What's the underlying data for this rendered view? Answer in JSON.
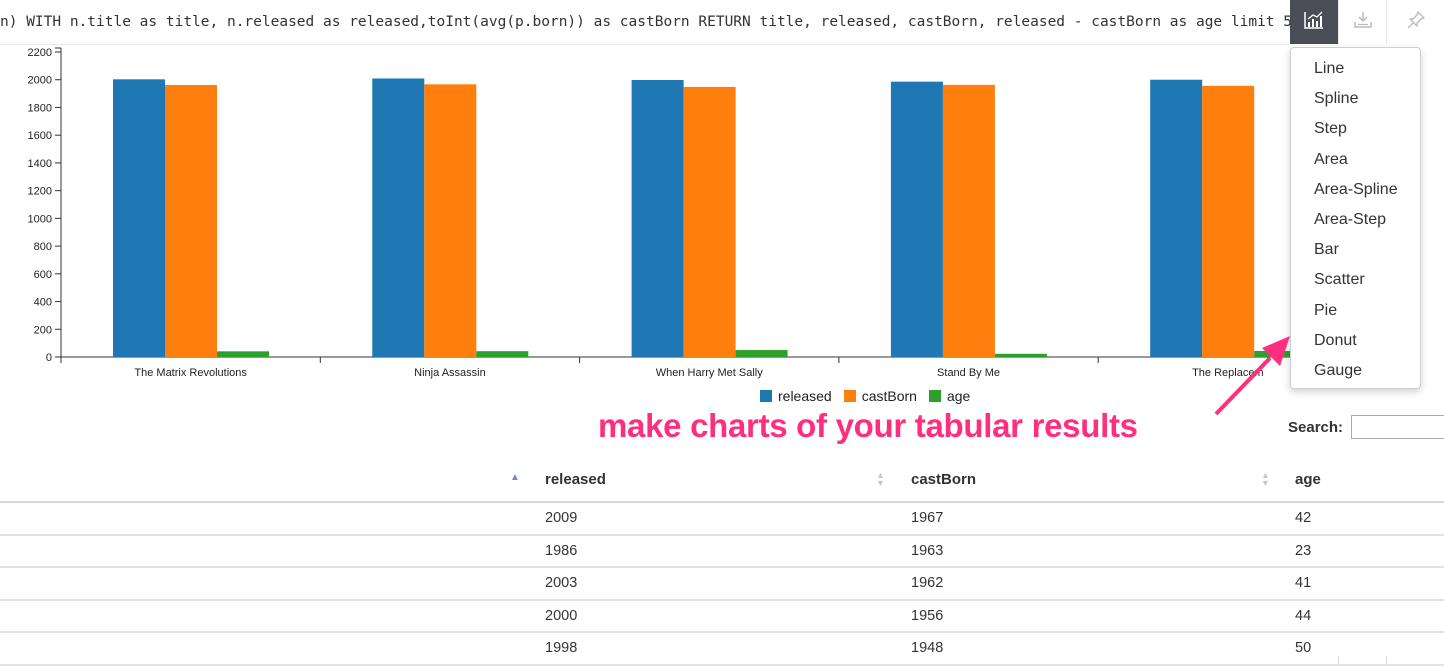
{
  "query": {
    "text": "n) WITH n.title as title, n.released as released,toInt(avg(p.born)) as castBorn RETURN title, released, castBorn, released - castBorn as age limit 5"
  },
  "toolbar": {
    "chart_icon": "chart-icon",
    "download_icon": "download-icon",
    "pin_icon": "pin-icon",
    "active_color": "#4a4d55"
  },
  "chart_type_menu": {
    "items": [
      "Line",
      "Spline",
      "Step",
      "Area",
      "Area-Spline",
      "Area-Step",
      "Bar",
      "Scatter",
      "Pie",
      "Donut",
      "Gauge"
    ]
  },
  "annotation": {
    "text": "make charts of your tabular results",
    "color": "#ff2e7e"
  },
  "search": {
    "label": "Search:",
    "value": ""
  },
  "table": {
    "columns": [
      "released",
      "castBorn",
      "age"
    ],
    "rows": [
      [
        "2009",
        "1967",
        "42"
      ],
      [
        "1986",
        "1963",
        "23"
      ],
      [
        "2003",
        "1962",
        "41"
      ],
      [
        "2000",
        "1956",
        "44"
      ],
      [
        "1998",
        "1948",
        "50"
      ]
    ]
  },
  "chart_data": {
    "type": "bar",
    "categories": [
      "The Matrix Revolutions",
      "Ninja Assassin",
      "When Harry Met Sally",
      "Stand By Me",
      "The Replacem"
    ],
    "series": [
      {
        "name": "released",
        "color": "#1f77b4",
        "values": [
          2003,
          2009,
          1998,
          1986,
          2000
        ]
      },
      {
        "name": "castBorn",
        "color": "#ff7f0e",
        "values": [
          1962,
          1967,
          1948,
          1963,
          1956
        ]
      },
      {
        "name": "age",
        "color": "#2ca02c",
        "values": [
          41,
          42,
          50,
          23,
          44
        ]
      }
    ],
    "yticks": [
      "0",
      "200",
      "400",
      "600",
      "800",
      "1000",
      "1200",
      "1400",
      "1600",
      "1800",
      "2000",
      "2200"
    ],
    "ylim": [
      0,
      2200
    ],
    "legend_position": "bottom"
  }
}
